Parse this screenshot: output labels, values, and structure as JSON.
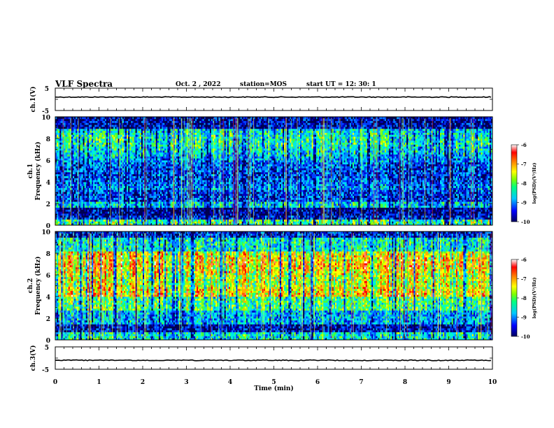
{
  "header": {
    "title": "VLF Spectra",
    "date": "Oct. 2 , 2022",
    "station": "station=MOS",
    "start_ut": "start UT = 12: 30: 1"
  },
  "chart_data": [
    {
      "type": "line",
      "ylabel": "ch.1(V)",
      "ylim": [
        -5,
        5
      ],
      "yticks": [
        "5",
        "-5"
      ],
      "xlim": [
        0,
        10
      ],
      "series": [
        {
          "values": [
            1,
            1
          ]
        }
      ]
    },
    {
      "type": "heatmap",
      "ylabel_top": "ch.1",
      "ylabel": "Frequency (kHz)",
      "ylim": [
        0,
        10
      ],
      "yticks": [
        "0",
        "2",
        "4",
        "6",
        "8",
        "10"
      ],
      "xlim": [
        0,
        10
      ],
      "colorbar": {
        "label": "log(PSD)(V²/Hz)",
        "range": [
          -10,
          -6
        ],
        "ticks": [
          "-6",
          "-7",
          "-8",
          "-9",
          "-10"
        ]
      },
      "colors": [
        "#000080",
        "#0000ff",
        "#00c0ff",
        "#00ff80",
        "#ffff00",
        "#ff8000",
        "#ff0000",
        "#ffffff"
      ]
    },
    {
      "type": "heatmap",
      "ylabel_top": "ch.2",
      "ylabel": "Frequency (kHz)",
      "ylim": [
        0,
        10
      ],
      "yticks": [
        "0",
        "2",
        "4",
        "6",
        "8",
        "10"
      ],
      "xlim": [
        0,
        10
      ],
      "colorbar": {
        "label": "log(PSD)(V²/Hz)",
        "range": [
          -10,
          -6
        ],
        "ticks": [
          "-6",
          "-7",
          "-8",
          "-9",
          "-10"
        ]
      },
      "colors": [
        "#000080",
        "#0000ff",
        "#00c0ff",
        "#00ff80",
        "#ffff00",
        "#ff8000",
        "#ff0000",
        "#ffffff"
      ]
    },
    {
      "type": "line",
      "ylabel": "ch.3(V)",
      "ylim": [
        -5,
        5
      ],
      "yticks": [
        "5",
        "-5"
      ],
      "xlim": [
        0,
        10
      ],
      "xlabel": "Time (min)",
      "xticks": [
        "0",
        "1",
        "2",
        "3",
        "4",
        "5",
        "6",
        "7",
        "8",
        "9",
        "10"
      ],
      "series": [
        {
          "values": [
            -1,
            -1
          ]
        }
      ]
    }
  ]
}
